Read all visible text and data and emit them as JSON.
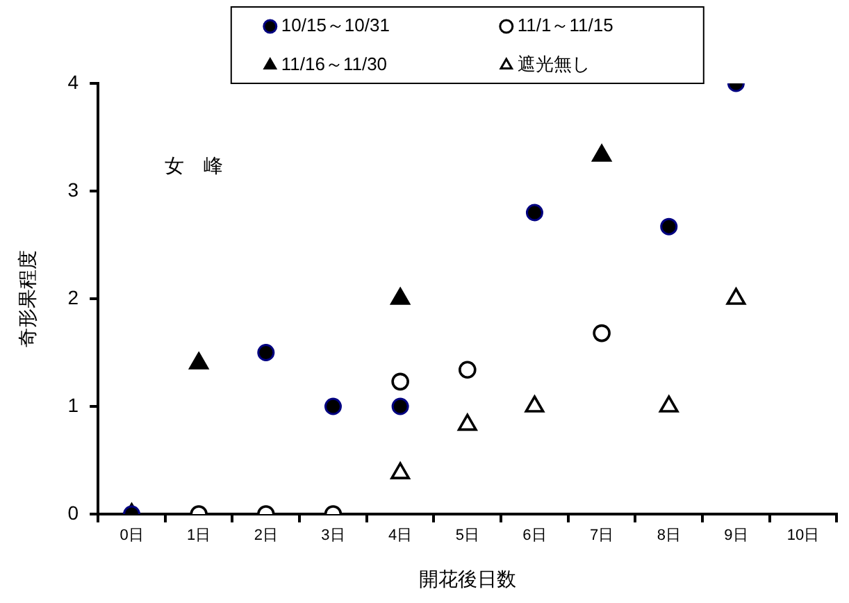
{
  "chart_data": {
    "type": "scatter",
    "xlabel": "開花後日数",
    "ylabel": "奇形果程度",
    "categories": [
      "0日",
      "1日",
      "2日",
      "3日",
      "4日",
      "5日",
      "6日",
      "7日",
      "8日",
      "9日",
      "10日"
    ],
    "series": [
      {
        "name": "10/15～10/31",
        "color": "#000000",
        "marker": "circle",
        "values": [
          0,
          null,
          1.5,
          1,
          1,
          null,
          2.8,
          null,
          2.67,
          4,
          null
        ]
      },
      {
        "name": "11/1～11/15",
        "color": "#ffffff",
        "marker": "circle",
        "values": [
          null,
          0,
          0,
          0,
          1.23,
          1.34,
          null,
          1.68,
          null,
          null,
          null
        ]
      },
      {
        "name": "11/16～11/30",
        "color": "#000000",
        "marker": "triangle",
        "values": [
          null,
          1.4,
          null,
          null,
          2,
          null,
          null,
          3.33,
          null,
          null,
          null
        ]
      },
      {
        "name": "遮光無し",
        "color": "#ffffff",
        "marker": "triangle",
        "values": [
          0,
          null,
          null,
          null,
          0.38,
          0.83,
          1,
          null,
          1,
          2,
          null
        ]
      }
    ],
    "ylim": [
      0,
      4
    ],
    "yticks": [
      0,
      1,
      2,
      3,
      4
    ],
    "grid": false,
    "legend": "top",
    "annotations": [
      "女　峰"
    ]
  }
}
